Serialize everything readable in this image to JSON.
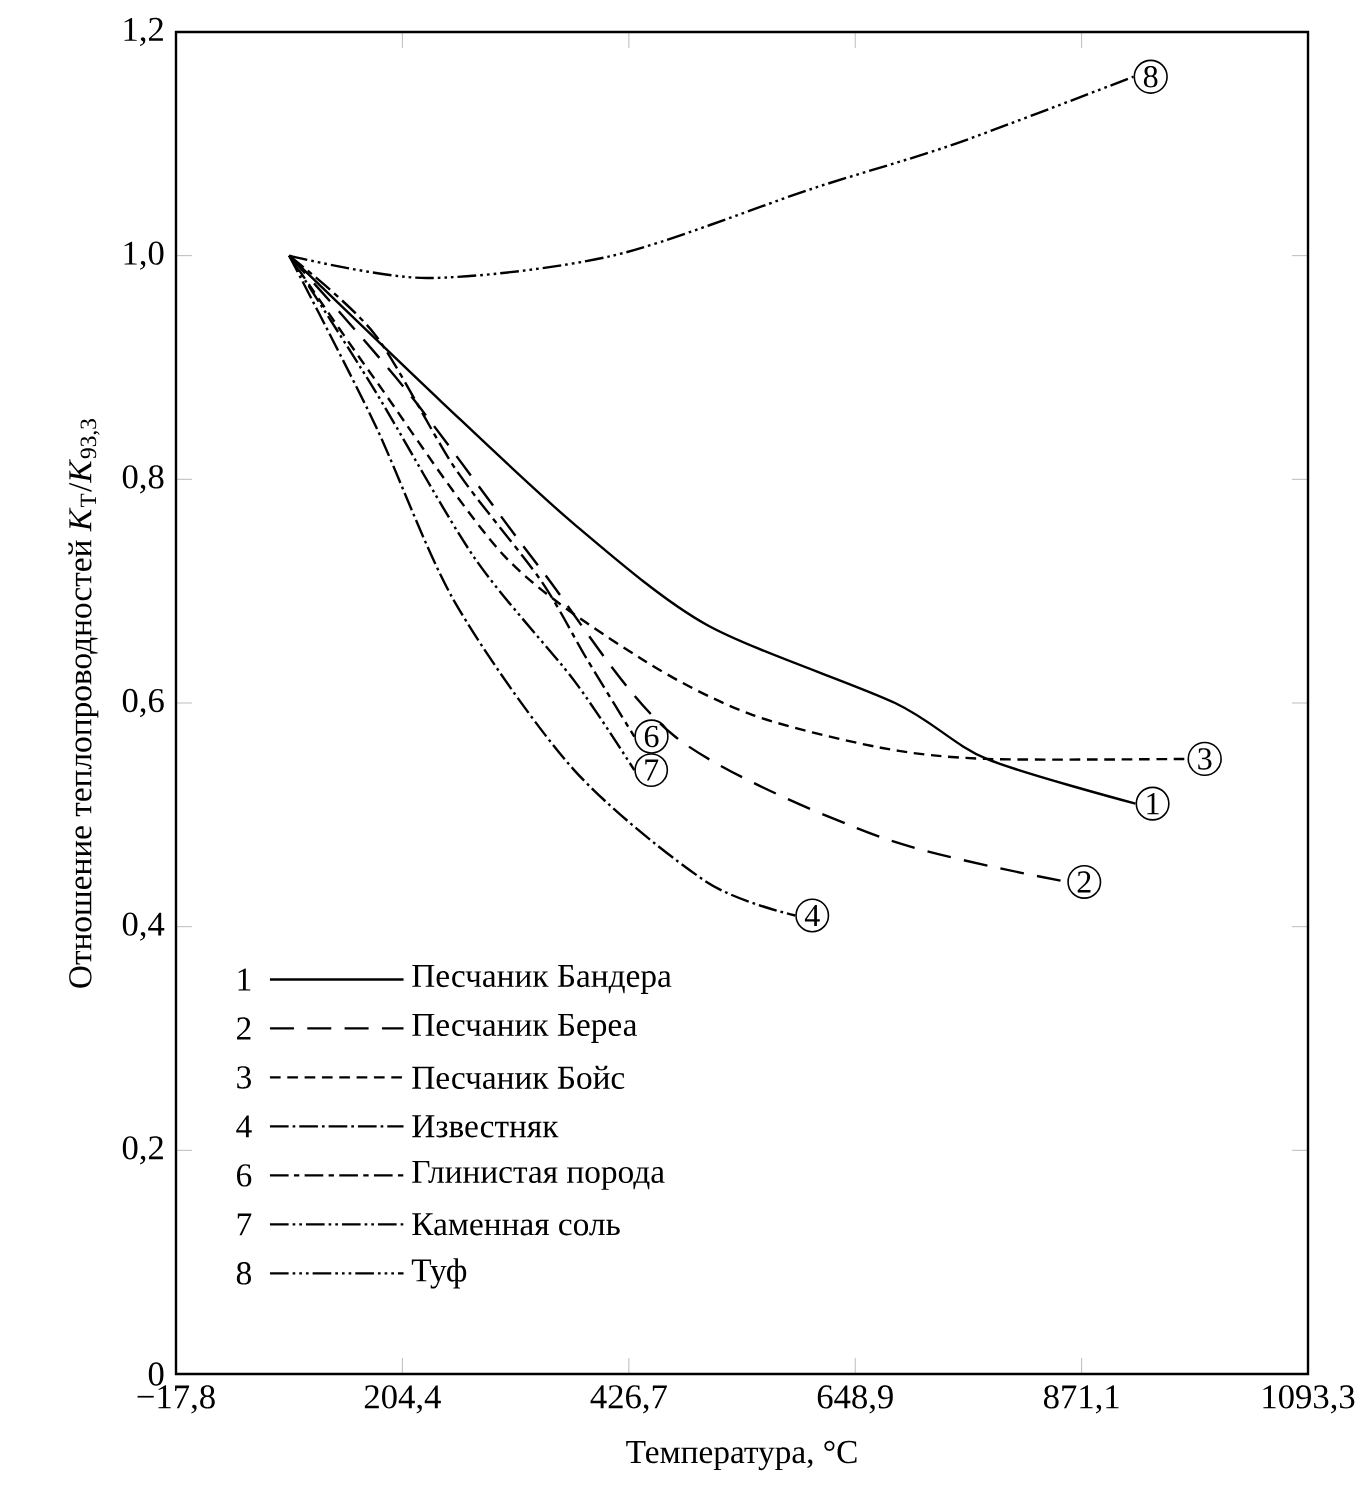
{
  "chart_data": {
    "type": "line",
    "xlabel": "Температура, °C",
    "ylabel": "Отношение теплопроводностей *K*$_{T}$/*K*$_{93,3}$",
    "xlim": [
      -17.8,
      1093.3
    ],
    "ylim": [
      0,
      1.2
    ],
    "xticks": [
      {
        "value": -17.8,
        "label": "−17,8"
      },
      {
        "value": 204.4,
        "label": "204,4"
      },
      {
        "value": 426.7,
        "label": "426,7"
      },
      {
        "value": 648.9,
        "label": "648,9"
      },
      {
        "value": 871.1,
        "label": "871,1"
      },
      {
        "value": 1093.3,
        "label": "1093,3"
      }
    ],
    "yticks": [
      0,
      {
        "value": 0.2,
        "label": "0,2"
      },
      {
        "value": 0.4,
        "label": "0,4"
      },
      {
        "value": 0.6,
        "label": "0,6"
      },
      {
        "value": 0.8,
        "label": "0,8"
      },
      {
        "value": 1.0,
        "label": "1,0"
      },
      {
        "value": 1.2,
        "label": "1,2"
      }
    ],
    "legend": "bottom left",
    "marker": "none",
    "series": [
      {
        "name": "Песчаник Бандера",
        "color": "#000000",
        "line_style": "solid",
        "x": [
          93.3,
          242,
          373,
          503,
          688,
          778,
          924
        ],
        "values": [
          1.0,
          0.87,
          0.76,
          0.67,
          0.6,
          0.55,
          0.51
        ]
      },
      {
        "name": "Песчаник Береа",
        "color": "#000000",
        "line_style": "long dashed",
        "x": [
          93.3,
          208,
          340,
          472,
          674,
          857
        ],
        "values": [
          1.0,
          0.88,
          0.72,
          0.57,
          0.48,
          0.44
        ]
      },
      {
        "name": "Песчаник Бойс",
        "color": "#000000",
        "line_style": "dashed",
        "x": [
          93.3,
          177,
          306,
          438,
          546,
          674,
          778,
          975
        ],
        "values": [
          1.0,
          0.89,
          0.73,
          0.64,
          0.59,
          0.56,
          0.55,
          0.55
        ]
      },
      {
        "name": "Известняк",
        "color": "#000000",
        "line_style": "dash dot",
        "x": [
          93.3,
          177,
          256,
          373,
          503,
          590
        ],
        "values": [
          1.0,
          0.85,
          0.69,
          0.54,
          0.44,
          0.41
        ]
      },
      {
        "name": "Глинистая порода",
        "color": "#000000",
        "line_style": "dash dash",
        "x": [
          93.3,
          177,
          256,
          340,
          385,
          432
        ],
        "values": [
          1.0,
          0.93,
          0.81,
          0.71,
          0.64,
          0.57
        ]
      },
      {
        "name": "Каменная соль",
        "color": "#000000",
        "line_style": "dash dot dot",
        "x": [
          93.3,
          177,
          275,
          373,
          432
        ],
        "values": [
          1.0,
          0.88,
          0.73,
          0.62,
          0.54
        ]
      },
      {
        "name": "Туф",
        "color": "#000000",
        "line_style": "dash dot dot dot",
        "x": [
          93.3,
          228,
          411,
          607,
          747,
          922
        ],
        "values": [
          1.0,
          0.98,
          1.0,
          1.06,
          1.1,
          1.16
        ]
      }
    ],
    "annotations": [
      {
        "text": "1",
        "x": 924,
        "y": 0.51
      },
      {
        "text": "2",
        "x": 857,
        "y": 0.44
      },
      {
        "text": "3",
        "x": 975,
        "y": 0.55
      },
      {
        "text": "4",
        "x": 590,
        "y": 0.41
      },
      {
        "text": "6",
        "x": 432,
        "y": 0.57
      },
      {
        "text": "7",
        "x": 432,
        "y": 0.54
      },
      {
        "text": "8",
        "x": 922,
        "y": 1.16
      }
    ]
  }
}
